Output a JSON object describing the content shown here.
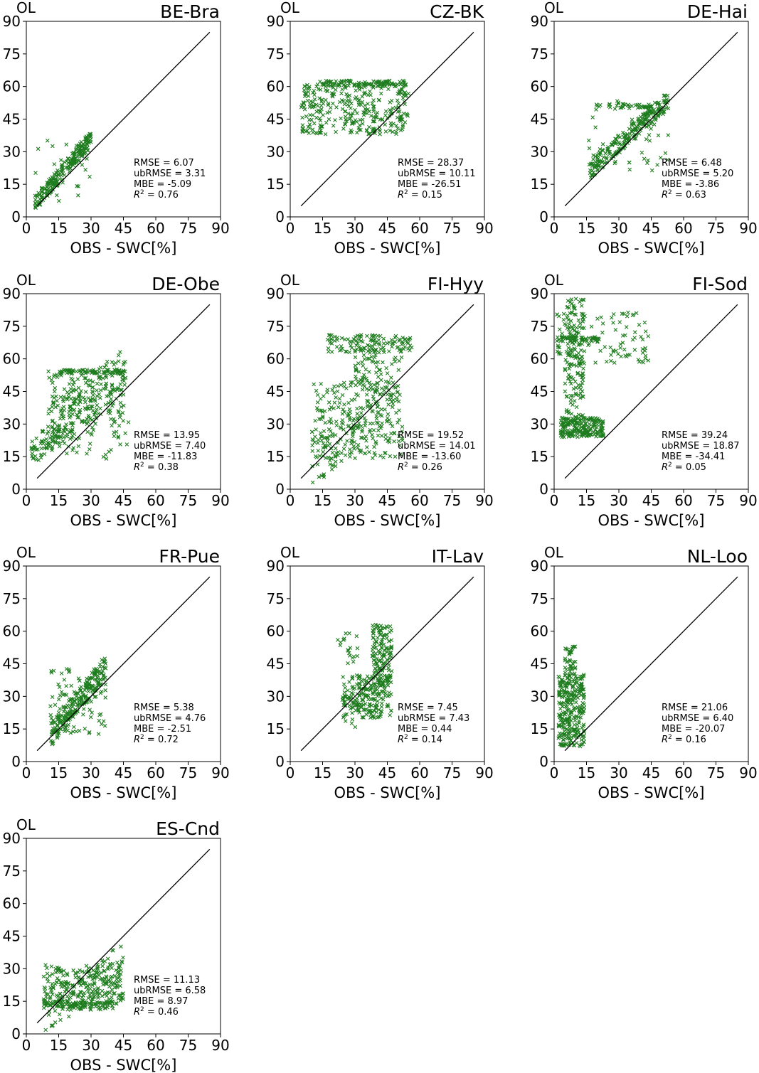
{
  "figure": {
    "model_label": "OL",
    "axis_ticks": [
      "0",
      "15",
      "30",
      "45",
      "60",
      "75",
      "90"
    ],
    "xlabel": "OBS - SWC[%]",
    "marker_color": "#1e7d1e",
    "line_color": "#000000"
  },
  "chart_data": [
    {
      "type": "scatter",
      "site": "BE-Bra",
      "model_label": "OL",
      "xlabel": "OBS - SWC[%]",
      "xlim": [
        0,
        90
      ],
      "ylim": [
        0,
        90
      ],
      "one_to_one_line": [
        5,
        85
      ],
      "stats": [
        "RMSE = 6.07",
        "ubRMSE = 3.31",
        "MBE = -5.09",
        "R² = 0.76"
      ],
      "clusters": [
        {
          "x": [
            4,
            30
          ],
          "y": [
            6,
            36
          ],
          "n": 240,
          "trend": 1.0,
          "spread": 0.1
        }
      ]
    },
    {
      "type": "scatter",
      "site": "CZ-BK",
      "model_label": "OL",
      "xlabel": "OBS - SWC[%]",
      "xlim": [
        0,
        90
      ],
      "ylim": [
        0,
        90
      ],
      "one_to_one_line": [
        5,
        85
      ],
      "stats": [
        "RMSE = 28.37",
        "ubRMSE = 10.11",
        "MBE = -26.51",
        "R² = 0.15"
      ],
      "clusters": [
        {
          "x": [
            5,
            55
          ],
          "y": [
            38,
            62
          ],
          "n": 320,
          "trend": 0,
          "spread": 1
        },
        {
          "x": [
            12,
            53
          ],
          "y": [
            60,
            63
          ],
          "n": 100,
          "trend": 0,
          "spread": 1
        }
      ]
    },
    {
      "type": "scatter",
      "site": "DE-Hai",
      "model_label": "OL",
      "xlabel": "OBS - SWC[%]",
      "xlim": [
        0,
        90
      ],
      "ylim": [
        0,
        90
      ],
      "one_to_one_line": [
        5,
        85
      ],
      "stats": [
        "RMSE = 6.48",
        "ubRMSE = 5.20",
        "MBE = -3.86",
        "R² = 0.63"
      ],
      "clusters": [
        {
          "x": [
            16,
            53
          ],
          "y": [
            21,
            54
          ],
          "n": 280,
          "trend": 1.0,
          "spread": 0.15
        },
        {
          "x": [
            19,
            45
          ],
          "y": [
            50,
            52
          ],
          "n": 40,
          "trend": 0,
          "spread": 1
        }
      ]
    },
    {
      "type": "scatter",
      "site": "DE-Obe",
      "model_label": "OL",
      "xlabel": "OBS - SWC[%]",
      "xlim": [
        0,
        90
      ],
      "ylim": [
        0,
        90
      ],
      "one_to_one_line": [
        5,
        85
      ],
      "stats": [
        "RMSE = 13.95",
        "ubRMSE = 7.40",
        "MBE = -11.83",
        "R² = 0.38"
      ],
      "clusters": [
        {
          "x": [
            2,
            22
          ],
          "y": [
            15,
            28
          ],
          "n": 80,
          "trend": 0.6,
          "spread": 0.3
        },
        {
          "x": [
            10,
            46
          ],
          "y": [
            28,
            55
          ],
          "n": 300,
          "trend": 0.5,
          "spread": 0.5
        },
        {
          "x": [
            15,
            46
          ],
          "y": [
            53,
            55
          ],
          "n": 60,
          "trend": 0,
          "spread": 1
        },
        {
          "x": [
            20,
            48
          ],
          "y": [
            14,
            32
          ],
          "n": 30,
          "trend": 0,
          "spread": 1
        }
      ]
    },
    {
      "type": "scatter",
      "site": "FI-Hyy",
      "model_label": "OL",
      "xlabel": "OBS - SWC[%]",
      "xlim": [
        0,
        90
      ],
      "ylim": [
        0,
        90
      ],
      "one_to_one_line": [
        5,
        85
      ],
      "stats": [
        "RMSE = 19.52",
        "ubRMSE = 14.01",
        "MBE = -13.60",
        "R² = 0.26"
      ],
      "clusters": [
        {
          "x": [
            10,
            52
          ],
          "y": [
            14,
            50
          ],
          "n": 340,
          "trend": 0.5,
          "spread": 0.6
        },
        {
          "x": [
            17,
            57
          ],
          "y": [
            63,
            71
          ],
          "n": 120,
          "trend": 0,
          "spread": 1
        },
        {
          "x": [
            30,
            43
          ],
          "y": [
            45,
            65
          ],
          "n": 60,
          "trend": 0,
          "spread": 1
        }
      ]
    },
    {
      "type": "scatter",
      "site": "FI-Sod",
      "model_label": "OL",
      "xlabel": "OBS - SWC[%]",
      "xlim": [
        0,
        90
      ],
      "ylim": [
        0,
        90
      ],
      "one_to_one_line": [
        5,
        85
      ],
      "stats": [
        "RMSE = 39.24",
        "ubRMSE = 18.87",
        "MBE = -34.41",
        "R² = 0.05"
      ],
      "clusters": [
        {
          "x": [
            3,
            23
          ],
          "y": [
            24,
            33
          ],
          "n": 200,
          "trend": 0,
          "spread": 1
        },
        {
          "x": [
            5,
            14
          ],
          "y": [
            30,
            88
          ],
          "n": 150,
          "trend": 0,
          "spread": 1
        },
        {
          "x": [
            1,
            44
          ],
          "y": [
            58,
            82
          ],
          "n": 110,
          "trend": 0,
          "spread": 1
        },
        {
          "x": [
            1,
            22
          ],
          "y": [
            68,
            70
          ],
          "n": 50,
          "trend": 0,
          "spread": 1
        }
      ]
    },
    {
      "type": "scatter",
      "site": "FR-Pue",
      "model_label": "OL",
      "xlabel": "OBS - SWC[%]",
      "xlim": [
        0,
        90
      ],
      "ylim": [
        0,
        90
      ],
      "one_to_one_line": [
        5,
        85
      ],
      "stats": [
        "RMSE = 5.38",
        "ubRMSE = 4.76",
        "MBE = -2.51",
        "R² = 0.72"
      ],
      "clusters": [
        {
          "x": [
            11,
            37
          ],
          "y": [
            12,
            44
          ],
          "n": 300,
          "trend": 0.9,
          "spread": 0.3
        }
      ]
    },
    {
      "type": "scatter",
      "site": "IT-Lav",
      "model_label": "OL",
      "xlabel": "OBS - SWC[%]",
      "xlim": [
        0,
        90
      ],
      "ylim": [
        0,
        90
      ],
      "one_to_one_line": [
        5,
        85
      ],
      "stats": [
        "RMSE = 7.45",
        "ubRMSE = 7.43",
        "MBE = 0.44",
        "R² = 0.14"
      ],
      "clusters": [
        {
          "x": [
            24,
            47
          ],
          "y": [
            20,
            40
          ],
          "n": 240,
          "trend": 0.3,
          "spread": 0.7
        },
        {
          "x": [
            38,
            47
          ],
          "y": [
            38,
            63
          ],
          "n": 120,
          "trend": 0,
          "spread": 1
        },
        {
          "x": [
            22,
            32
          ],
          "y": [
            45,
            60
          ],
          "n": 20,
          "trend": 0,
          "spread": 1
        }
      ]
    },
    {
      "type": "scatter",
      "site": "NL-Loo",
      "model_label": "OL",
      "xlabel": "OBS - SWC[%]",
      "xlim": [
        0,
        90
      ],
      "ylim": [
        0,
        90
      ],
      "one_to_one_line": [
        5,
        85
      ],
      "stats": [
        "RMSE = 21.06",
        "ubRMSE = 6.40",
        "MBE = -20.07",
        "R² = 0.16"
      ],
      "clusters": [
        {
          "x": [
            2,
            14
          ],
          "y": [
            7,
            40
          ],
          "n": 300,
          "trend": 0,
          "spread": 1
        },
        {
          "x": [
            5,
            10
          ],
          "y": [
            40,
            53
          ],
          "n": 40,
          "trend": 0,
          "spread": 1
        }
      ]
    },
    {
      "type": "scatter",
      "site": "ES-Cnd",
      "model_label": "OL",
      "xlabel": "OBS - SWC[%]",
      "xlim": [
        0,
        90
      ],
      "ylim": [
        0,
        90
      ],
      "one_to_one_line": [
        5,
        85
      ],
      "stats": [
        "RMSE = 11.13",
        "ubRMSE = 6.58",
        "MBE = 8.97",
        "R² = 0.46"
      ],
      "clusters": [
        {
          "x": [
            8,
            45
          ],
          "y": [
            11,
            32
          ],
          "n": 320,
          "trend": 0.3,
          "spread": 0.6
        },
        {
          "x": [
            8,
            40
          ],
          "y": [
            12,
            15
          ],
          "n": 80,
          "trend": 0,
          "spread": 1
        }
      ]
    }
  ]
}
